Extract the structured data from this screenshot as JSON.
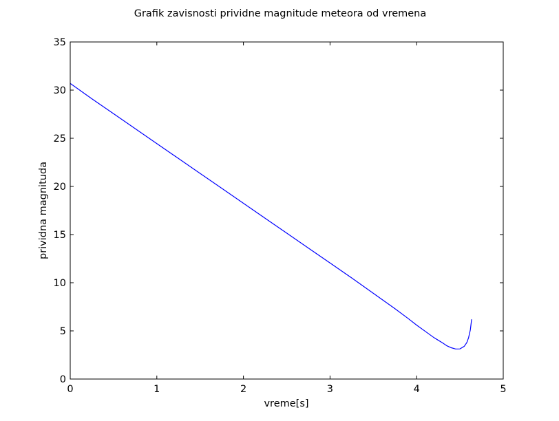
{
  "chart_data": {
    "type": "line",
    "title": "Grafik zavisnosti prividne magnitude meteora od vremena",
    "xlabel": "vreme[s]",
    "ylabel": "prividna magnituda",
    "xlim": [
      0,
      5
    ],
    "ylim": [
      0,
      35
    ],
    "xticks": [
      0,
      1,
      2,
      3,
      4,
      5
    ],
    "yticks": [
      0,
      5,
      10,
      15,
      20,
      25,
      30,
      35
    ],
    "grid": false,
    "legend": "none",
    "series": [
      {
        "color": "#0000ff",
        "x": [
          0,
          0.25,
          0.5,
          0.75,
          1.0,
          1.25,
          1.5,
          1.75,
          2.0,
          2.25,
          2.5,
          2.75,
          3.0,
          3.25,
          3.5,
          3.75,
          3.9,
          4.0,
          4.1,
          4.2,
          4.3,
          4.35,
          4.4,
          4.45,
          4.5,
          4.55,
          4.58,
          4.6,
          4.62,
          4.635
        ],
        "y": [
          30.7,
          29.1,
          27.55,
          26.0,
          24.45,
          22.9,
          21.35,
          19.8,
          18.25,
          16.7,
          15.15,
          13.6,
          12.05,
          10.5,
          8.9,
          7.3,
          6.3,
          5.6,
          4.95,
          4.3,
          3.75,
          3.45,
          3.25,
          3.12,
          3.13,
          3.4,
          3.8,
          4.3,
          5.1,
          6.2
        ]
      }
    ]
  }
}
